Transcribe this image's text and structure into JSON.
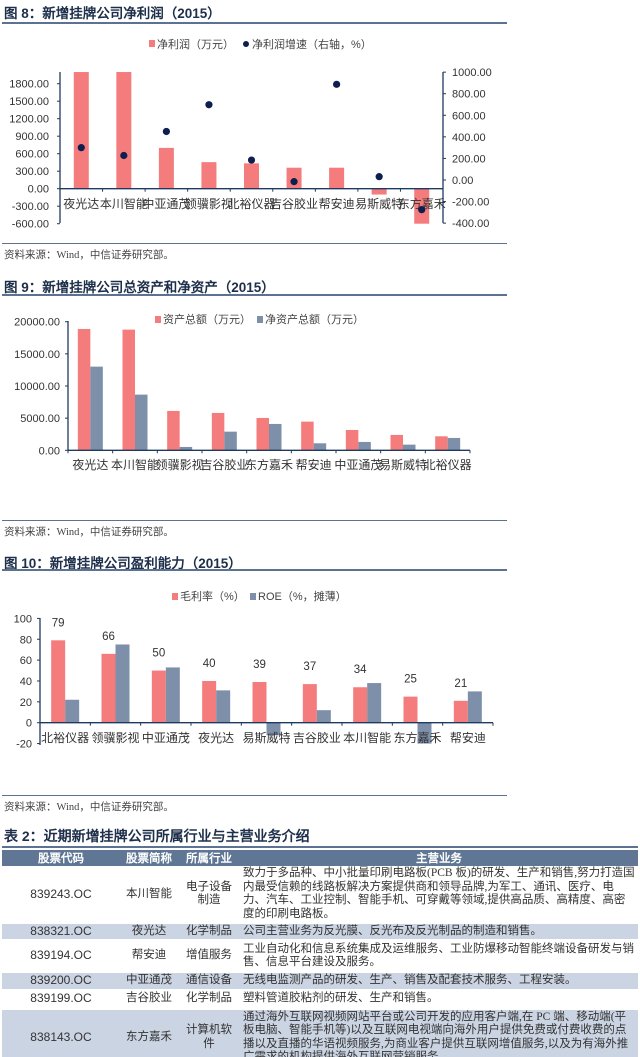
{
  "figures": [
    {
      "title": "图 8：新增挂牌公司净利润（2015）",
      "source": "资料来源：Wind，中信证券研究部。"
    },
    {
      "title": "图 9：新增挂牌公司总资产和净资产（2015）",
      "source": "资料来源：Wind，中信证券研究部。"
    },
    {
      "title": "图 10：新增挂牌公司盈利能力（2015）",
      "source": "资料来源：Wind，中信证券研究部。"
    }
  ],
  "chart_data": [
    {
      "type": "bar",
      "categories": [
        "夜光达",
        "本川智能",
        "中亚通茂",
        "领骥影视",
        "北裕仪器",
        "吉谷胶业",
        "帮安迪",
        "易斯威特",
        "东方嘉禾"
      ],
      "series": [
        {
          "name": "净利润（万元）",
          "kind": "bar",
          "axis": "left",
          "color": "#f47c7c",
          "values": [
            2000,
            2000,
            700,
            455,
            435,
            360,
            360,
            -100,
            -600
          ]
        },
        {
          "name": "净利润增速（右轴，%）",
          "kind": "scatter",
          "axis": "right",
          "color": "#0e1f4f",
          "values": [
            300,
            227,
            450,
            698,
            185,
            -15,
            887,
            31,
            -275
          ]
        }
      ],
      "ylim_left": [
        -600,
        2000
      ],
      "yticks_left": [
        "1800.00",
        "1500.00",
        "1200.00",
        "900.00",
        "600.00",
        "300.00",
        "0.00",
        "-300.00",
        "-600.00"
      ],
      "ylim_right": [
        -400,
        1000
      ],
      "yticks_right": [
        "1000.00",
        "800.00",
        "600.00",
        "400.00",
        "200.00",
        "0.00",
        "-200.00",
        "-400.00"
      ],
      "legend": "top-center",
      "grid": false
    },
    {
      "type": "bar",
      "categories": [
        "夜光达",
        "本川智能",
        "领骥影视",
        "吉谷胶业",
        "东方嘉禾",
        "帮安迪",
        "中亚通茂",
        "易斯威特",
        "北裕仪器"
      ],
      "series": [
        {
          "name": "资产总额（万元）",
          "color": "#f47c7c",
          "values": [
            18870,
            18770,
            6120,
            5810,
            5030,
            4460,
            3160,
            2390,
            2180
          ]
        },
        {
          "name": "净资产总额（万元）",
          "color": "#7d8fa9",
          "values": [
            13010,
            8660,
            520,
            2900,
            4100,
            1090,
            1300,
            880,
            1920
          ]
        }
      ],
      "ylim": [
        0,
        20000
      ],
      "yticks": [
        "20000.00",
        "15000.00",
        "10000.00",
        "5000.00",
        "0.00"
      ],
      "legend": "top-center",
      "grid": false
    },
    {
      "type": "bar",
      "categories": [
        "北裕仪器",
        "领骥影视",
        "中亚通茂",
        "夜光达",
        "易斯威特",
        "吉谷胶业",
        "本川智能",
        "东方嘉禾",
        "帮安迪"
      ],
      "series": [
        {
          "name": "毛利率（%）",
          "color": "#f47c7c",
          "values": [
            79,
            66,
            50,
            40,
            39,
            37,
            34,
            25,
            21
          ],
          "labels": [
            "79",
            "66",
            "50",
            "40",
            "39",
            "37",
            "34",
            "25",
            "21"
          ]
        },
        {
          "name": "ROE（%，摊薄）",
          "color": "#7d8fa9",
          "values": [
            22,
            75,
            53,
            31,
            -12,
            12,
            38,
            -20,
            30
          ]
        }
      ],
      "ylim": [
        -20,
        100
      ],
      "yticks": [
        "100",
        "80",
        "60",
        "40",
        "20",
        "0",
        "-20"
      ],
      "legend": "top-center",
      "grid": false
    }
  ],
  "table": {
    "title": "表 2：近期新增挂牌公司所属行业与主营业务介绍",
    "headers": [
      "股票代码",
      "股票简称",
      "所属行业",
      "主营业务"
    ],
    "rows": [
      [
        "839243.OC",
        "本川智能",
        "电子设备制造",
        "致力于多品种、中小批量印刷电路板(PCB 板)的研发、生产和销售,努力打造国内最受信赖的线路板解决方案提供商和领导品牌,为军工、通讯、医疗、电力、汽车、工业控制、智能手机、可穿戴等领域,提供高品质、高精度、高密度的印刷电路板。"
      ],
      [
        "838321.OC",
        "夜光达",
        "化学制品",
        "公司主营业务为反光膜、反光布及反光制品的制造和销售。"
      ],
      [
        "839194.OC",
        "帮安迪",
        "增值服务",
        "工业自动化和信息系统集成及运维服务、工业防爆移动智能终端设备研发与销售、信息平台建设及服务。"
      ],
      [
        "839200.OC",
        "中亚通茂",
        "通信设备",
        "无线电监测产品的研发、生产、销售及配套技术服务、工程安装。"
      ],
      [
        "839199.OC",
        "吉谷胶业",
        "化学制品",
        "塑料管道胶粘剂的研发、生产和销售。"
      ],
      [
        "838143.OC",
        "东方嘉禾",
        "计算机软件",
        "通过海外互联网视频网站平台或公司开发的应用客户端,在 PC 端、移动端(平板电脑、智能手机等)以及互联网电视端向海外用户提供免费或付费收费的点播以及直播的华语视频服务,为商业客户提供互联网增值服务,以及为有海外推广需求的机构提供海外互联网营销服务。"
      ]
    ]
  },
  "colors": {
    "accent_red": "#f47c7c",
    "accent_blue": "#7d8fa9",
    "dot": "#0e1f4f",
    "header_bg": "#5f7795",
    "alt_row": "#cbd4e2"
  }
}
